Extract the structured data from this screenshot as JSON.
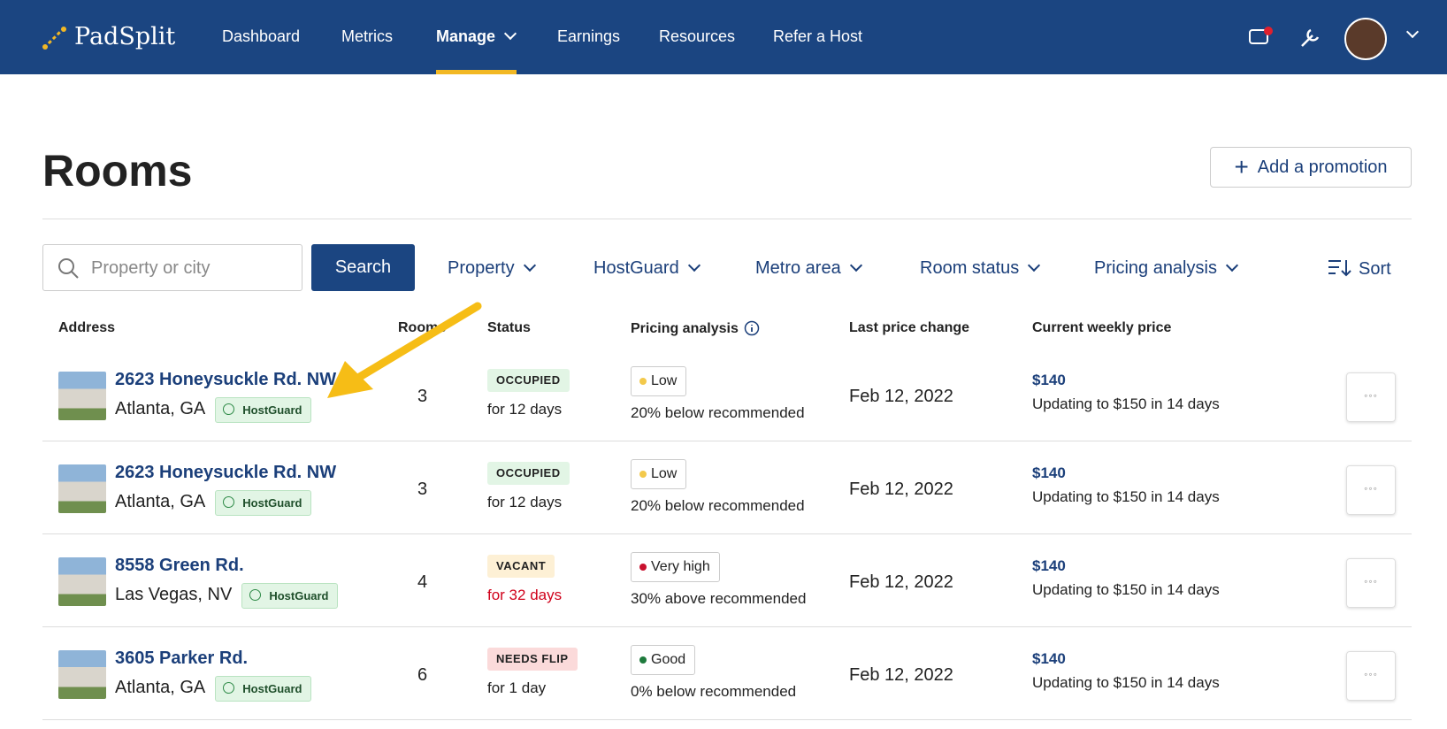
{
  "nav": {
    "logo": "PadSplit",
    "items": [
      "Dashboard",
      "Metrics",
      "Manage",
      "Earnings",
      "Resources",
      "Refer a Host"
    ]
  },
  "header": {
    "title": "Rooms",
    "button": "Add a promotion"
  },
  "filters": {
    "search_placeholder": "Property or city",
    "search_button": "Search",
    "dropdowns": [
      "Property",
      "HostGuard",
      "Metro area",
      "Room status",
      "Pricing analysis"
    ],
    "sort": "Sort"
  },
  "table": {
    "columns": [
      "Address",
      "Rooms",
      "Status",
      "Pricing analysis",
      "Last price change",
      "Current weekly price"
    ],
    "rows": [
      {
        "address": "2623 Honeysuckle Rd. NW",
        "city": "Atlanta, GA",
        "badge": "HostGuard",
        "rooms": "3",
        "status": "OCCUPIED",
        "status_color": "#e2f5e5",
        "duration": "for 12 days",
        "duration_color": "#222222",
        "pricing": "Low",
        "dot_color": "#f3c94b",
        "pricing_note": "20% below recommended",
        "last_change": "Feb 12, 2022",
        "price": "$140",
        "update": "Updating to $150 in 14 days"
      },
      {
        "address": "2623 Honeysuckle Rd. NW",
        "city": "Atlanta, GA",
        "badge": "HostGuard",
        "rooms": "3",
        "status": "OCCUPIED",
        "status_color": "#e2f5e5",
        "duration": "for 12 days",
        "duration_color": "#222222",
        "pricing": "Low",
        "dot_color": "#f3c94b",
        "pricing_note": "20% below recommended",
        "last_change": "Feb 12, 2022",
        "price": "$140",
        "update": "Updating to $150 in 14 days"
      },
      {
        "address": "8558 Green Rd.",
        "city": "Las Vegas, NV",
        "badge": "HostGuard",
        "rooms": "4",
        "status": "VACANT",
        "status_color": "#fdf0d5",
        "duration": "for 32 days",
        "duration_color": "#d0021b",
        "pricing": "Very high",
        "dot_color": "#c8102e",
        "pricing_note": "30% above recommended",
        "last_change": "Feb 12, 2022",
        "price": "$140",
        "update": "Updating to $150 in 14 days"
      },
      {
        "address": "3605 Parker Rd.",
        "city": "Atlanta, GA",
        "badge": "HostGuard",
        "rooms": "6",
        "status": "NEEDS FLIP",
        "status_color": "#fbdada",
        "duration": "for 1 day",
        "duration_color": "#222222",
        "pricing": "Good",
        "dot_color": "#1e7a3c",
        "pricing_note": "0% below recommended",
        "last_change": "Feb 12, 2022",
        "price": "$140",
        "update": "Updating to $150 in 14 days"
      }
    ]
  }
}
